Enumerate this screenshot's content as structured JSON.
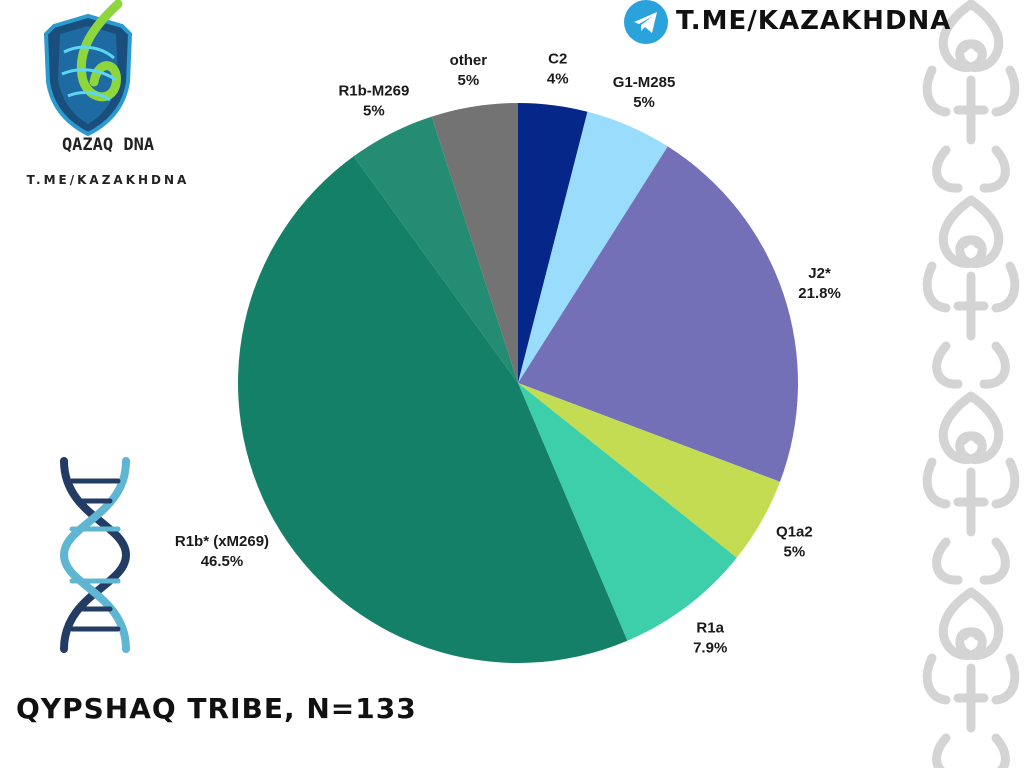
{
  "header": {
    "telegram_link": "T.ME/KAZAKHDNA",
    "telegram_icon": "telegram-paper-plane-icon"
  },
  "logo": {
    "brand": "QAZAQ DNA",
    "link": "T.ME/KAZAKHDNA",
    "icon": "dna-shield-icon"
  },
  "footer": {
    "title": "QYPSHAQ TRIBE, N=133"
  },
  "decor": {
    "dna_icon": "dna-helix-icon",
    "ornament_icon": "kazakh-ornament-border"
  },
  "chart_data": {
    "type": "pie",
    "title": "",
    "start_angle_deg": 0,
    "direction": "clockwise",
    "slices": [
      {
        "label": "C2",
        "value": 4,
        "value_label": "4%",
        "color": "#06278a"
      },
      {
        "label": "G1-M285",
        "value": 5,
        "value_label": "5%",
        "color": "#99dcfb"
      },
      {
        "label": "J2*",
        "value": 21.8,
        "value_label": "21.8%",
        "color": "#7470b8"
      },
      {
        "label": "Q1a2",
        "value": 5,
        "value_label": "5%",
        "color": "#c4dc52"
      },
      {
        "label": "R1a",
        "value": 7.9,
        "value_label": "7.9%",
        "color": "#3ccfaa"
      },
      {
        "label": "R1b* (xM269)",
        "value": 46.5,
        "value_label": "46.5%",
        "color": "#158068"
      },
      {
        "label": "R1b-M269",
        "value": 5,
        "value_label": "5%",
        "color": "#238c72"
      },
      {
        "label": "other",
        "value": 5,
        "value_label": "5%",
        "color": "#737373"
      }
    ]
  }
}
